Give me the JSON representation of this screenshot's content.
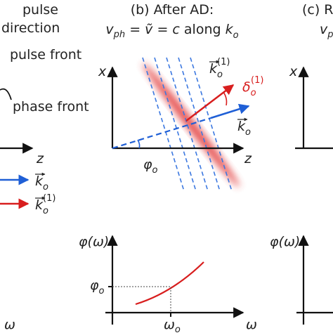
{
  "panel_a": {
    "pulse": "pulse",
    "direction": "direction",
    "pulse_front": "pulse front",
    "phase_front": "phase front",
    "axis_z": "z",
    "legend": [
      {
        "symbol": "k",
        "sub": "o"
      },
      {
        "symbol": "k",
        "sub": "o",
        "sup": "(1)"
      }
    ],
    "bottom_axis_x": "ω"
  },
  "panel_b": {
    "title": "(b) After AD:",
    "subtitle": [
      "v",
      "ph",
      " = ",
      "ṽ",
      " = ",
      "c",
      " along ",
      "k",
      "o"
    ],
    "axis_x": "x",
    "axis_z": "z",
    "k1": {
      "symbol": "k",
      "sub": "o",
      "sup": "(1)"
    },
    "delta": {
      "symbol": "δ",
      "sub": "o",
      "sup": "(1)"
    },
    "k0": {
      "symbol": "k",
      "sub": "o"
    },
    "angle": {
      "symbol": "φ",
      "sub": "o"
    },
    "bottom_axis_y": "φ(ω)",
    "bottom_axis_x": "ω",
    "phi0": {
      "symbol": "φ",
      "sub": "o"
    },
    "omega0": {
      "symbol": "ω",
      "sub": "o"
    }
  },
  "panel_c": {
    "title": "(c) R",
    "subtitle": {
      "symbol": "v",
      "sub": "p"
    },
    "axis_x": "x",
    "bottom_axis_y": "φ(ω)"
  }
}
